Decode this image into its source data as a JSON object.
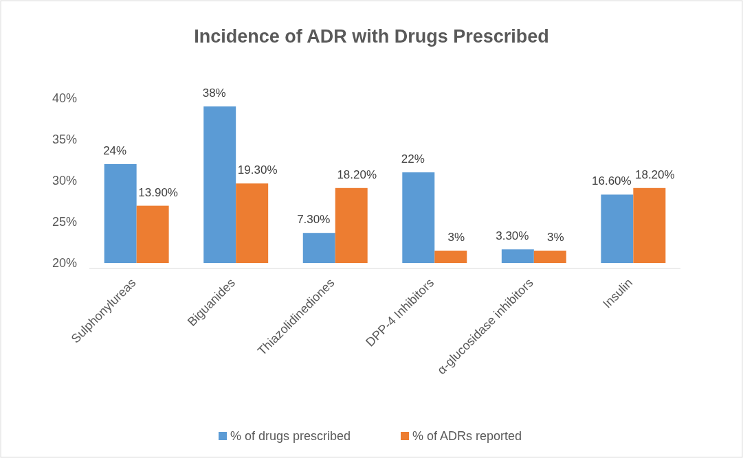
{
  "chart_data": {
    "type": "bar",
    "title": "Incidence of ADR with Drugs Prescribed",
    "categories": [
      "Sulphonylureas",
      "Biguanides",
      "Thiazolidinediones",
      "DPP-4 Inhibitors",
      "α-glucosidase inhibitors",
      "Insulin"
    ],
    "series": [
      {
        "name": "% of drugs prescribed",
        "color": "#5b9bd5",
        "values": [
          24,
          38,
          7.3,
          22,
          3.3,
          16.6
        ],
        "value_labels": [
          "24%",
          "38%",
          "7.30%",
          "22%",
          "3.30%",
          "16.60%"
        ]
      },
      {
        "name": "% of ADRs reported",
        "color": "#ed7d31",
        "values": [
          13.9,
          19.3,
          18.2,
          3,
          3,
          18.2
        ],
        "value_labels": [
          "13.90%",
          "19.30%",
          "18.20%",
          "3%",
          "3%",
          "18.20%"
        ]
      }
    ],
    "annotations": [
      "20%",
      "25%",
      "30%",
      "35%",
      "40%"
    ],
    "legend": "bottom"
  }
}
